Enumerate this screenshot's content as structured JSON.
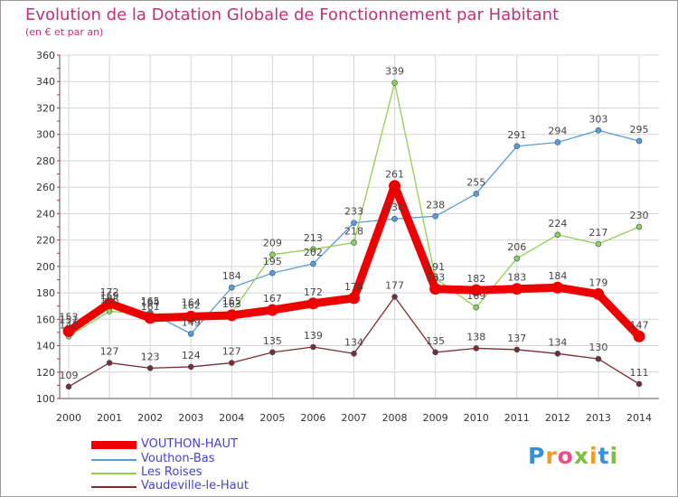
{
  "chart_data": {
    "type": "line",
    "title": "Evolution de la Dotation Globale de Fonctionnement par Habitant",
    "subtitle": "(en € et par an)",
    "x": [
      "2000",
      "2001",
      "2002",
      "2003",
      "2004",
      "2005",
      "2006",
      "2007",
      "2008",
      "2009",
      "2010",
      "2011",
      "2012",
      "2013",
      "2014"
    ],
    "ylim": [
      100,
      360
    ],
    "yticks": [
      "100",
      "120",
      "140",
      "160",
      "180",
      "200",
      "220",
      "240",
      "260",
      "280",
      "300",
      "320",
      "340",
      "360"
    ],
    "grid": true,
    "legend_position": "bottom-left",
    "series": [
      {
        "name": "VOUTHON-HAUT",
        "color": "#ee0000",
        "values": [
          151,
          172,
          161,
          162,
          163,
          167,
          172,
          176,
          261,
          183,
          182,
          183,
          184,
          179,
          147
        ],
        "labels": [
          "151",
          "172",
          "161",
          "162",
          "163",
          "167",
          "172",
          "176",
          "261",
          "183",
          "182",
          "183",
          "184",
          "179",
          "147"
        ]
      },
      {
        "name": "Vouthon-Bas",
        "color": "#5b9bd5",
        "values": [
          153,
          169,
          165,
          149,
          184,
          195,
          202,
          233,
          236,
          238,
          255,
          291,
          294,
          303,
          295
        ],
        "labels": [
          "153",
          "169",
          "165",
          "149",
          "184",
          "195",
          "202",
          "233",
          "236",
          "238",
          "255",
          "291",
          "294",
          "303",
          "295"
        ]
      },
      {
        "name": "Les Roises",
        "color": "#8fd14f",
        "values": [
          147,
          166,
          164,
          164,
          165,
          209,
          213,
          218,
          339,
          191,
          169,
          206,
          224,
          217,
          230
        ],
        "labels": [
          "147",
          "166",
          "164",
          "164",
          "165",
          "209",
          "213",
          "218",
          "339",
          "191",
          "169",
          "206",
          "224",
          "217",
          "230"
        ]
      },
      {
        "name": "Vaudeville-le-Haut",
        "color": "#7b2c2c",
        "values": [
          109,
          127,
          123,
          124,
          127,
          135,
          139,
          134,
          177,
          135,
          138,
          137,
          134,
          130,
          111
        ],
        "labels": [
          "109",
          "127",
          "123",
          "124",
          "127",
          "135",
          "139",
          "134",
          "177",
          "135",
          "138",
          "137",
          "134",
          "130",
          "111"
        ]
      }
    ]
  },
  "logo": {
    "p": "P",
    "r": "r",
    "o": "o",
    "x": "x",
    "i1": "i",
    "t": "t",
    "i2": "i"
  }
}
